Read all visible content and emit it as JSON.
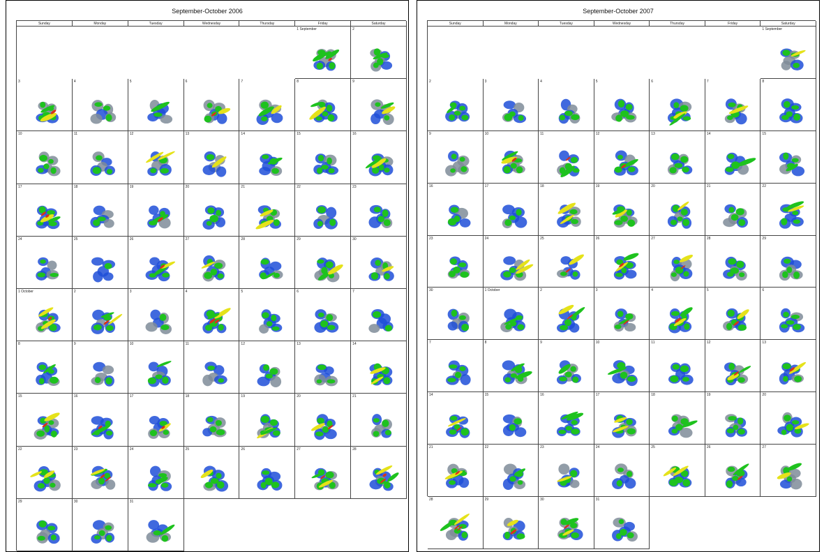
{
  "panels": [
    {
      "title": "September-October 2006",
      "weekdays": [
        "Sunday",
        "Monday",
        "Tuesday",
        "Wednesday",
        "Thursday",
        "Friday",
        "Saturday"
      ],
      "first_weekday_index": 5,
      "days": [
        "1 September",
        "2",
        "3",
        "4",
        "5",
        "6",
        "7",
        "8",
        "9",
        "10",
        "11",
        "12",
        "13",
        "14",
        "15",
        "16",
        "17",
        "18",
        "19",
        "20",
        "21",
        "22",
        "23",
        "24",
        "25",
        "26",
        "27",
        "28",
        "29",
        "30",
        "1 October",
        "2",
        "3",
        "4",
        "5",
        "6",
        "7",
        "8",
        "9",
        "10",
        "11",
        "12",
        "13",
        "14",
        "15",
        "16",
        "17",
        "18",
        "19",
        "20",
        "21",
        "22",
        "23",
        "24",
        "25",
        "26",
        "27",
        "28",
        "29",
        "30",
        "31"
      ]
    },
    {
      "title": "September-October 2007",
      "weekdays": [
        "Sunday",
        "Monday",
        "Tuesday",
        "Wednesday",
        "Thursday",
        "Friday",
        "Saturday"
      ],
      "first_weekday_index": 6,
      "days": [
        "1 September",
        "2",
        "3",
        "4",
        "5",
        "6",
        "7",
        "8",
        "9",
        "10",
        "11",
        "12",
        "13",
        "14",
        "15",
        "16",
        "17",
        "18",
        "19",
        "20",
        "21",
        "22",
        "23",
        "24",
        "25",
        "26",
        "27",
        "28",
        "29",
        "30",
        "1 October",
        "2",
        "3",
        "4",
        "5",
        "6",
        "7",
        "8",
        "9",
        "10",
        "11",
        "12",
        "13",
        "14",
        "15",
        "16",
        "17",
        "18",
        "19",
        "20",
        "21",
        "22",
        "23",
        "24",
        "25",
        "26",
        "27",
        "28",
        "29",
        "30",
        "31"
      ]
    }
  ],
  "colors": {
    "blue": "#1f4fd8",
    "green": "#1ec21e",
    "yellow": "#e5e21a",
    "red": "#d8321a",
    "grey": "#7f8c99"
  }
}
